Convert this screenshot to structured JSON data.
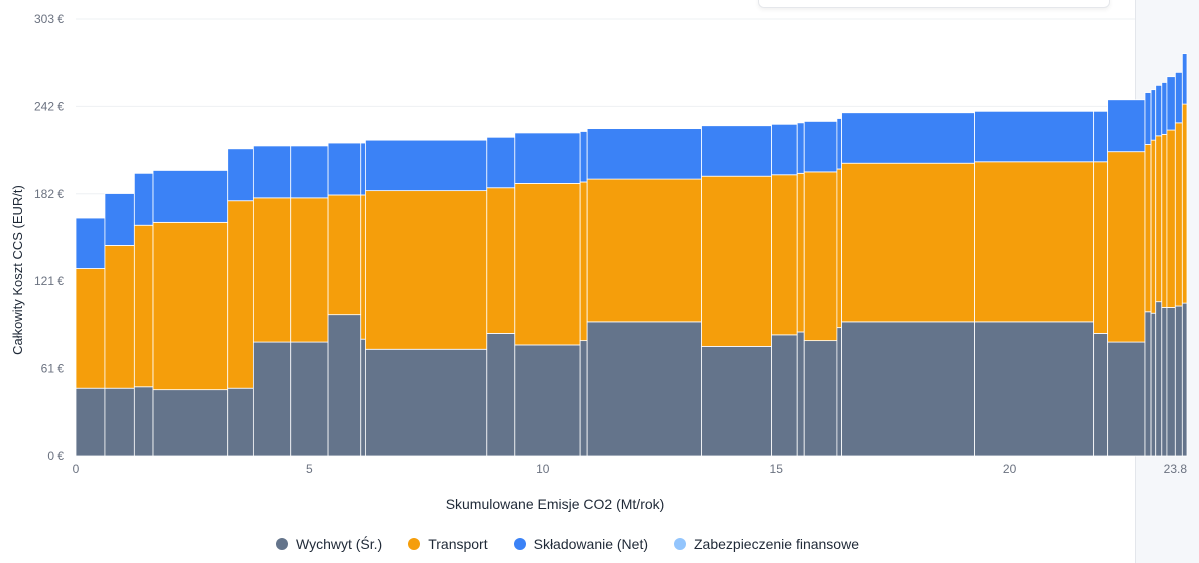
{
  "chart_data": {
    "type": "bar",
    "subtype": "stacked-variable-width",
    "xlabel": "Skumulowane Emisje CO2 (Mt/rok)",
    "ylabel": "Całkowity Koszt CCS (EUR/t)",
    "yticks": [
      "0 €",
      "61 €",
      "121 €",
      "182 €",
      "242 €",
      "303 €"
    ],
    "ytick_values": [
      0,
      60.6,
      121.2,
      181.8,
      242.4,
      303
    ],
    "xticks": [
      "0",
      "5",
      "10",
      "15",
      "20",
      "23.8"
    ],
    "xtick_values": [
      0,
      5,
      10,
      15,
      20,
      23.8
    ],
    "xlim": [
      0,
      23.8
    ],
    "ylim": [
      0,
      303
    ],
    "grid": "horizontal",
    "legend_position": "bottom",
    "series": [
      {
        "name": "Wychwyt (Śr.)",
        "color": "#64748b"
      },
      {
        "name": "Transport",
        "color": "#f59e0b"
      },
      {
        "name": "Składowanie (Net)",
        "color": "#3b82f6"
      },
      {
        "name": "Zabezpieczenie finansowe",
        "color": "#93c5fd"
      }
    ],
    "bars": [
      {
        "x0": 0.0,
        "x1": 0.62,
        "capture": 47,
        "transport": 83,
        "storage": 35
      },
      {
        "x0": 0.62,
        "x1": 1.25,
        "capture": 47,
        "transport": 99,
        "storage": 36
      },
      {
        "x0": 1.25,
        "x1": 1.65,
        "capture": 48,
        "transport": 112,
        "storage": 36
      },
      {
        "x0": 1.65,
        "x1": 3.25,
        "capture": 46,
        "transport": 116,
        "storage": 36
      },
      {
        "x0": 3.25,
        "x1": 3.8,
        "capture": 47,
        "transport": 130,
        "storage": 36
      },
      {
        "x0": 3.8,
        "x1": 4.6,
        "capture": 79,
        "transport": 100,
        "storage": 36
      },
      {
        "x0": 4.6,
        "x1": 5.4,
        "capture": 79,
        "transport": 100,
        "storage": 36
      },
      {
        "x0": 5.4,
        "x1": 6.1,
        "capture": 98,
        "transport": 83,
        "storage": 36
      },
      {
        "x0": 6.1,
        "x1": 6.2,
        "capture": 81,
        "transport": 100,
        "storage": 36
      },
      {
        "x0": 6.2,
        "x1": 8.8,
        "capture": 74,
        "transport": 110,
        "storage": 35
      },
      {
        "x0": 8.8,
        "x1": 9.4,
        "capture": 85,
        "transport": 101,
        "storage": 35
      },
      {
        "x0": 9.4,
        "x1": 10.8,
        "capture": 77,
        "transport": 112,
        "storage": 35
      },
      {
        "x0": 10.8,
        "x1": 10.95,
        "capture": 80,
        "transport": 110,
        "storage": 35
      },
      {
        "x0": 10.95,
        "x1": 13.4,
        "capture": 93,
        "transport": 99,
        "storage": 35
      },
      {
        "x0": 13.4,
        "x1": 14.9,
        "capture": 76,
        "transport": 118,
        "storage": 35
      },
      {
        "x0": 14.9,
        "x1": 15.45,
        "capture": 84,
        "transport": 111,
        "storage": 35
      },
      {
        "x0": 15.45,
        "x1": 15.6,
        "capture": 86,
        "transport": 110,
        "storage": 35
      },
      {
        "x0": 15.6,
        "x1": 16.3,
        "capture": 80,
        "transport": 117,
        "storage": 35
      },
      {
        "x0": 16.3,
        "x1": 16.4,
        "capture": 89,
        "transport": 110,
        "storage": 35
      },
      {
        "x0": 16.4,
        "x1": 19.25,
        "capture": 93,
        "transport": 110,
        "storage": 35
      },
      {
        "x0": 19.25,
        "x1": 21.8,
        "capture": 93,
        "transport": 111,
        "storage": 35
      },
      {
        "x0": 21.8,
        "x1": 22.1,
        "capture": 85,
        "transport": 119,
        "storage": 35
      },
      {
        "x0": 22.1,
        "x1": 22.9,
        "capture": 79,
        "transport": 132,
        "storage": 36
      },
      {
        "x0": 22.9,
        "x1": 23.03,
        "capture": 100,
        "transport": 116,
        "storage": 36
      },
      {
        "x0": 23.03,
        "x1": 23.13,
        "capture": 99,
        "transport": 120,
        "storage": 35
      },
      {
        "x0": 23.13,
        "x1": 23.26,
        "capture": 107,
        "transport": 115,
        "storage": 35
      },
      {
        "x0": 23.26,
        "x1": 23.37,
        "capture": 103,
        "transport": 120,
        "storage": 36
      },
      {
        "x0": 23.37,
        "x1": 23.55,
        "capture": 103,
        "transport": 123,
        "storage": 37
      },
      {
        "x0": 23.55,
        "x1": 23.7,
        "capture": 104,
        "transport": 127,
        "storage": 35
      },
      {
        "x0": 23.7,
        "x1": 23.8,
        "capture": 106,
        "transport": 138,
        "storage": 35
      }
    ]
  }
}
